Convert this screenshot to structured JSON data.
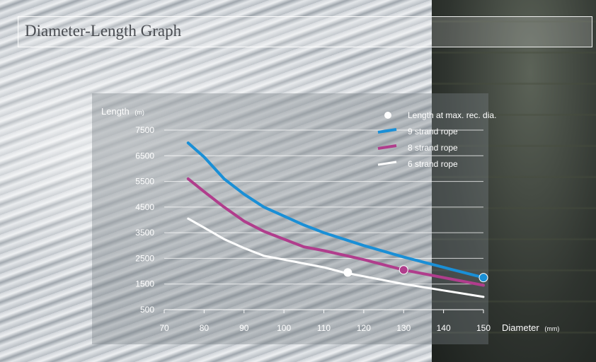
{
  "title": "Diameter-Length Graph",
  "chart_data": {
    "type": "line",
    "title": "Diameter-Length Graph",
    "xlabel": "Diameter",
    "xunit": "(mm)",
    "ylabel": "Length",
    "yunit": "(m)",
    "xlim": [
      70,
      150
    ],
    "ylim": [
      500,
      7500
    ],
    "xticks": [
      70,
      80,
      90,
      100,
      110,
      120,
      130,
      140,
      150
    ],
    "yticks": [
      500,
      1500,
      2500,
      3500,
      4500,
      5500,
      6500,
      7500
    ],
    "ytick_labels": [
      "500",
      "1500",
      "2500",
      "3500",
      "4500",
      "5500",
      "6500",
      "7500"
    ],
    "grid": true,
    "legend_position": "top-right",
    "marker_legend": "Length at max. rec. dia.",
    "series": [
      {
        "name": "9 strand rope",
        "color": "#1a8fd6",
        "x": [
          76,
          80,
          85,
          90,
          95,
          100,
          105,
          110,
          120,
          130,
          140,
          150
        ],
        "y": [
          7000,
          6450,
          5600,
          5000,
          4500,
          4150,
          3800,
          3500,
          3000,
          2550,
          2150,
          1750
        ],
        "marker": {
          "x": 150,
          "y": 1750
        }
      },
      {
        "name": "8 strand rope",
        "color": "#b03d8c",
        "x": [
          76,
          80,
          85,
          90,
          95,
          100,
          105,
          110,
          120,
          130,
          140,
          150
        ],
        "y": [
          5600,
          5100,
          4500,
          3950,
          3550,
          3250,
          2950,
          2800,
          2450,
          2050,
          1750,
          1450
        ],
        "marker": {
          "x": 130,
          "y": 2050
        }
      },
      {
        "name": "6 strand rope",
        "color": "#ffffff",
        "x": [
          76,
          80,
          85,
          90,
          95,
          100,
          110,
          115,
          120,
          130,
          140,
          150
        ],
        "y": [
          4050,
          3700,
          3250,
          2900,
          2600,
          2450,
          2150,
          1950,
          1800,
          1500,
          1250,
          1000
        ],
        "marker": {
          "x": 116,
          "y": 1950
        }
      }
    ]
  }
}
